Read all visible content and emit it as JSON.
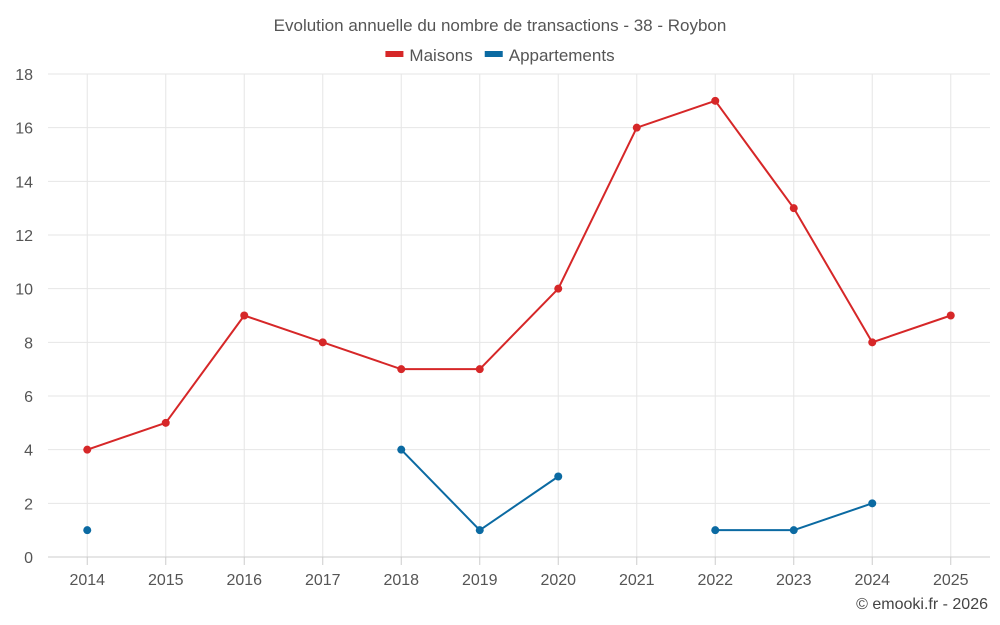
{
  "chart_data": {
    "type": "line",
    "title": "Evolution annuelle du nombre de transactions - 38 - Roybon",
    "xlabel": "",
    "ylabel": "",
    "categories": [
      "2014",
      "2015",
      "2016",
      "2017",
      "2018",
      "2019",
      "2020",
      "2021",
      "2022",
      "2023",
      "2024",
      "2025"
    ],
    "ylim": [
      0,
      18
    ],
    "yticks": [
      0,
      2,
      4,
      6,
      8,
      10,
      12,
      14,
      16,
      18
    ],
    "grid": true,
    "legend_position": "top-center",
    "series": [
      {
        "name": "Maisons",
        "color": "#d62728",
        "values": [
          4,
          5,
          9,
          8,
          7,
          7,
          10,
          16,
          17,
          13,
          8,
          9
        ]
      },
      {
        "name": "Appartements",
        "color": "#0b6aa2",
        "values": [
          1,
          null,
          null,
          null,
          4,
          1,
          3,
          null,
          1,
          1,
          2,
          null
        ]
      }
    ]
  },
  "credit": "© emooki.fr - 2026"
}
